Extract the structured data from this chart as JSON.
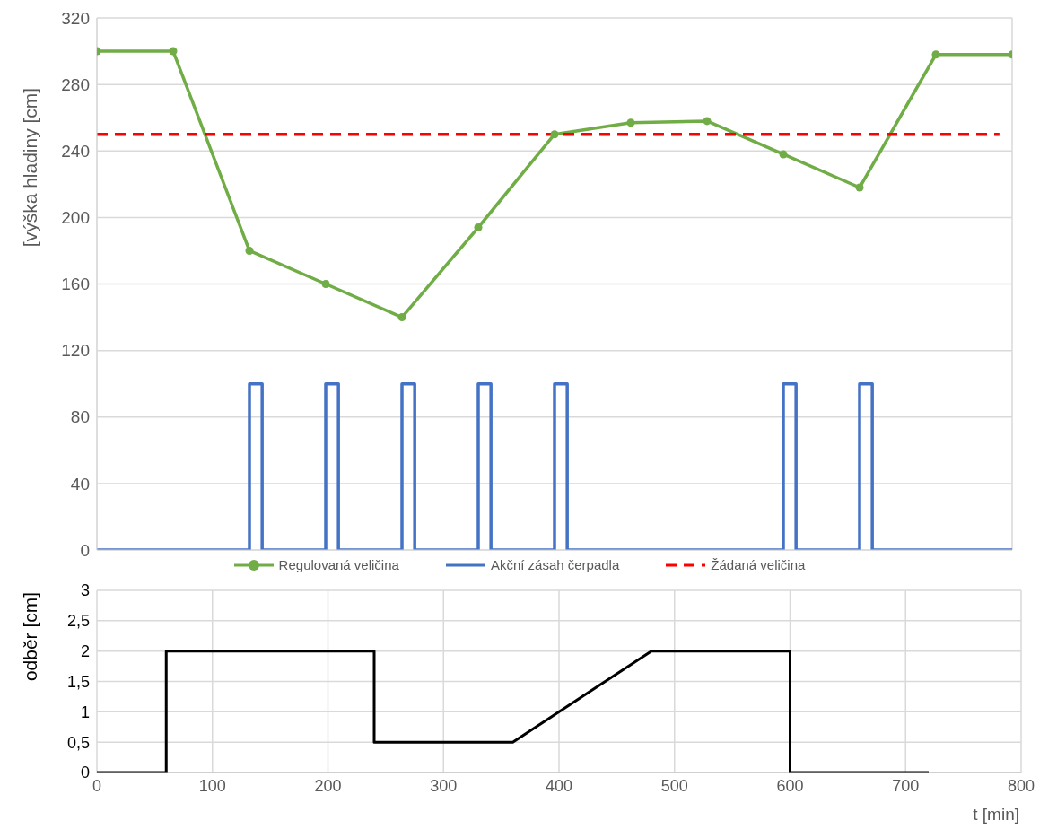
{
  "chart_data": [
    {
      "type": "line",
      "ylabel": "[výška hladiny [cm]",
      "categories": [
        null,
        null,
        null,
        null,
        null,
        null,
        null,
        null,
        null,
        null,
        null,
        null,
        null,
        null,
        null,
        null,
        null,
        null,
        null,
        null,
        null,
        null,
        null,
        null,
        null,
        null,
        null,
        null,
        null,
        null,
        null,
        null,
        null,
        null,
        null,
        null,
        null,
        null,
        null,
        null,
        null,
        null,
        null,
        null,
        null,
        null,
        null,
        null,
        null,
        null,
        null,
        null,
        null,
        null,
        null,
        null,
        null,
        null,
        null,
        null,
        null,
        null,
        null,
        null,
        null,
        null,
        null,
        null,
        null,
        null,
        null,
        null,
        null
      ],
      "ylim": [
        0,
        320
      ],
      "yticks": [
        0,
        40,
        80,
        120,
        160,
        200,
        240,
        280,
        320
      ],
      "grid": true,
      "legend": "bottom",
      "tick_labels": "y",
      "series": [
        {
          "name": "Regulovaná veličina",
          "type": "line",
          "marker": "circle",
          "color": "#70ad47",
          "values": [
            300,
            null,
            null,
            null,
            null,
            null,
            300,
            null,
            null,
            null,
            null,
            null,
            180,
            null,
            null,
            null,
            null,
            null,
            160,
            null,
            null,
            null,
            null,
            null,
            140,
            null,
            null,
            null,
            null,
            null,
            194,
            null,
            null,
            null,
            null,
            null,
            250,
            null,
            null,
            null,
            null,
            null,
            257,
            null,
            null,
            null,
            null,
            null,
            258,
            null,
            null,
            null,
            null,
            null,
            238,
            null,
            null,
            null,
            null,
            null,
            218,
            null,
            null,
            null,
            null,
            null,
            298,
            null,
            null,
            null,
            null,
            null,
            298
          ]
        },
        {
          "name": "Akční zásah čerpadla",
          "type": "step",
          "color": "#4472c4",
          "values": [
            0,
            0,
            0,
            0,
            0,
            0,
            0,
            0,
            0,
            0,
            0,
            0,
            0,
            100,
            0,
            0,
            0,
            0,
            0,
            100,
            0,
            0,
            0,
            0,
            0,
            100,
            0,
            0,
            0,
            0,
            0,
            100,
            0,
            0,
            0,
            0,
            0,
            100,
            0,
            0,
            0,
            0,
            0,
            0,
            0,
            0,
            0,
            0,
            0,
            0,
            0,
            0,
            0,
            0,
            0,
            100,
            0,
            0,
            0,
            0,
            0,
            100,
            0,
            0,
            0,
            0,
            0,
            0,
            0,
            0,
            0,
            0,
            0
          ]
        },
        {
          "name": "Žádaná veličina",
          "type": "line",
          "line_style": "dashed",
          "color": "#ff0000",
          "values": [
            250,
            250,
            250,
            250,
            250,
            250,
            250,
            250,
            250,
            250,
            250,
            250,
            250,
            250,
            250,
            250,
            250,
            250,
            250,
            250,
            250,
            250,
            250,
            250,
            250,
            250,
            250,
            250,
            250,
            250,
            250,
            250,
            250,
            250,
            250,
            250,
            250,
            250,
            250,
            250,
            250,
            250,
            250,
            250,
            250,
            250,
            250,
            250,
            250,
            250,
            250,
            250,
            250,
            250,
            250,
            250,
            250,
            250,
            250,
            250,
            250,
            250,
            250,
            250,
            250,
            250,
            250,
            250,
            250,
            250,
            250,
            250,
            null
          ]
        }
      ]
    },
    {
      "type": "line",
      "xlabel": "t [min]",
      "ylabel": "odběr [cm]",
      "x": [
        0,
        60,
        60,
        240,
        240,
        360,
        480,
        600,
        600,
        720
      ],
      "xlim": [
        0,
        800
      ],
      "xticks": [
        0,
        100,
        200,
        300,
        400,
        500,
        600,
        700,
        800
      ],
      "ylim": [
        0,
        3
      ],
      "yticks": [
        0,
        {
          "value": 0.5,
          "label": "0,5"
        },
        1,
        {
          "value": 1.5,
          "label": "1,5"
        },
        2,
        {
          "value": 2.5,
          "label": "2,5"
        },
        3
      ],
      "grid": true,
      "series": [
        {
          "color": "#000000",
          "values": [
            0,
            0,
            2,
            2,
            0.5,
            0.5,
            2,
            2,
            0,
            0
          ]
        }
      ]
    }
  ]
}
